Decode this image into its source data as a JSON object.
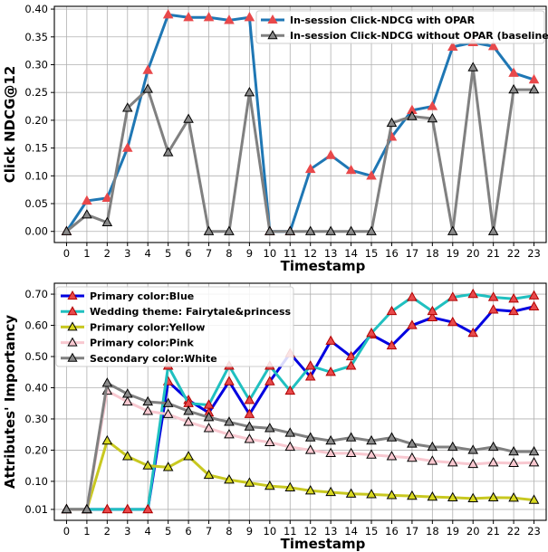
{
  "chart_data": [
    {
      "type": "line",
      "xlabel": "Timestamp",
      "ylabel": "Click NDCG@12",
      "x": [
        0,
        1,
        2,
        3,
        4,
        5,
        6,
        7,
        8,
        9,
        10,
        11,
        12,
        13,
        14,
        15,
        16,
        17,
        18,
        19,
        20,
        21,
        22,
        23
      ],
      "xlim": [
        -0.6,
        23.6
      ],
      "ylim": [
        -0.02,
        0.405
      ],
      "yticks": [
        0.0,
        0.05,
        0.1,
        0.15,
        0.2,
        0.25,
        0.3,
        0.35,
        0.4
      ],
      "ytick_labels": [
        "0.00",
        "0.05",
        "0.10",
        "0.15",
        "0.20",
        "0.25",
        "0.30",
        "0.35",
        "0.40"
      ],
      "grid": true,
      "legend": "top-right",
      "series": [
        {
          "name": "In-session Click-NDCG with OPAR",
          "color": "#1f77b4",
          "marker_face": "#e8494b",
          "marker_edge": "#e8494b",
          "values": [
            0.0,
            0.055,
            0.06,
            0.15,
            0.29,
            0.39,
            0.385,
            0.385,
            0.38,
            0.385,
            0.0,
            0.0,
            0.112,
            0.137,
            0.11,
            0.1,
            0.17,
            0.218,
            0.225,
            0.332,
            0.34,
            0.333,
            0.285,
            0.273
          ]
        },
        {
          "name": "In-session Click-NDCG without OPAR (baseline)",
          "color": "#808080",
          "marker_face": "#8a8a8a",
          "marker_edge": "#000000",
          "values": [
            0.0,
            0.03,
            0.016,
            0.222,
            0.256,
            0.142,
            0.202,
            0.0,
            0.0,
            0.25,
            0.0,
            0.0,
            0.0,
            0.0,
            0.0,
            0.0,
            0.195,
            0.207,
            0.203,
            0.0,
            0.295,
            0.0,
            0.255,
            0.255
          ]
        }
      ]
    },
    {
      "type": "line",
      "xlabel": "Timestamp",
      "ylabel": "Attributes' Importancy",
      "x": [
        0,
        1,
        2,
        3,
        4,
        5,
        6,
        7,
        8,
        9,
        10,
        11,
        12,
        13,
        14,
        15,
        16,
        17,
        18,
        19,
        20,
        21,
        22,
        23
      ],
      "xlim": [
        -0.6,
        23.6
      ],
      "ylim": [
        -0.025,
        0.735
      ],
      "yticks": [
        0.01,
        0.1,
        0.2,
        0.3,
        0.4,
        0.5,
        0.6,
        0.7
      ],
      "ytick_labels": [
        "0.01",
        "0.10",
        "0.20",
        "0.30",
        "0.40",
        "0.50",
        "0.60",
        "0.70"
      ],
      "grid": true,
      "legend": "top-left",
      "series": [
        {
          "name": "Primary color:Blue",
          "color": "#0000e0",
          "marker_face": "#e8494b",
          "marker_edge": "#b00000",
          "values": [
            0.01,
            0.01,
            0.01,
            0.01,
            0.01,
            0.42,
            0.36,
            0.32,
            0.42,
            0.315,
            0.42,
            0.51,
            0.435,
            0.55,
            0.5,
            0.57,
            0.535,
            0.6,
            0.625,
            0.61,
            0.575,
            0.65,
            0.645,
            0.66
          ]
        },
        {
          "name": "Wedding theme: Fairytale&princess",
          "color": "#20c0c0",
          "marker_face": "#e8494b",
          "marker_edge": "#b00000",
          "values": [
            0.01,
            0.01,
            0.01,
            0.01,
            0.01,
            0.47,
            0.35,
            0.345,
            0.47,
            0.36,
            0.47,
            0.39,
            0.47,
            0.45,
            0.47,
            0.575,
            0.645,
            0.69,
            0.645,
            0.69,
            0.7,
            0.69,
            0.685,
            0.695
          ]
        },
        {
          "name": "Primary color:Yellow",
          "color": "#c8c820",
          "marker_face": "#d8d820",
          "marker_edge": "#000000",
          "values": [
            0.01,
            0.01,
            0.23,
            0.18,
            0.15,
            0.145,
            0.18,
            0.12,
            0.105,
            0.095,
            0.085,
            0.08,
            0.07,
            0.065,
            0.06,
            0.058,
            0.055,
            0.053,
            0.05,
            0.048,
            0.045,
            0.048,
            0.047,
            0.04
          ]
        },
        {
          "name": "Primary color:Pink",
          "color": "#f8c8d0",
          "marker_face": "#f8c8d0",
          "marker_edge": "#000000",
          "values": [
            0.01,
            0.01,
            0.39,
            0.355,
            0.325,
            0.315,
            0.29,
            0.27,
            0.25,
            0.235,
            0.225,
            0.21,
            0.2,
            0.19,
            0.19,
            0.185,
            0.18,
            0.175,
            0.165,
            0.16,
            0.155,
            0.16,
            0.158,
            0.16
          ]
        },
        {
          "name": "Secondary color:White",
          "color": "#808080",
          "marker_face": "#8a8a8a",
          "marker_edge": "#000000",
          "values": [
            0.01,
            0.01,
            0.415,
            0.38,
            0.355,
            0.35,
            0.325,
            0.305,
            0.29,
            0.275,
            0.27,
            0.255,
            0.24,
            0.23,
            0.24,
            0.23,
            0.24,
            0.22,
            0.21,
            0.21,
            0.2,
            0.21,
            0.195,
            0.195
          ]
        }
      ]
    }
  ]
}
